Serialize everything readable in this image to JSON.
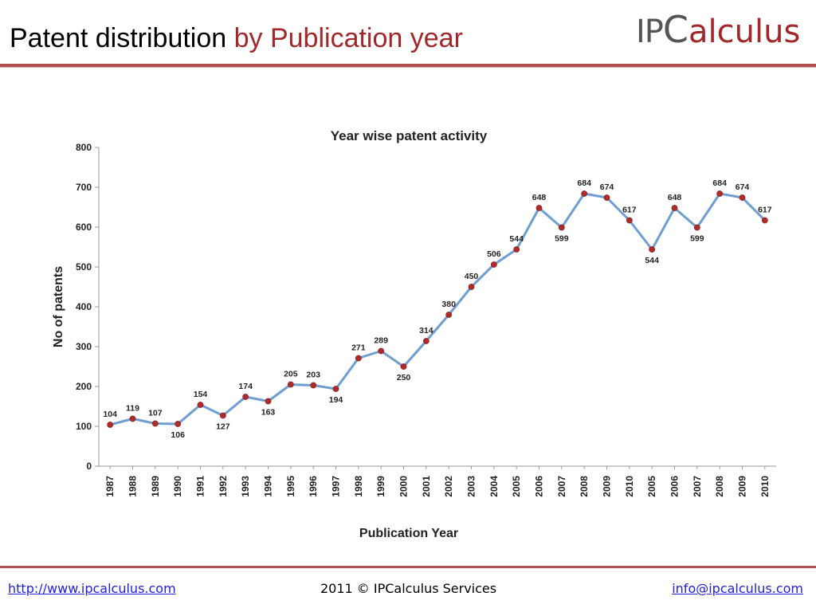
{
  "slide": {
    "title_part1": "Patent distribution",
    "title_part2": " by Publication year",
    "logo_ip": "IP",
    "logo_c": "C",
    "logo_rest": "alculus"
  },
  "footer": {
    "website": "http://www.ipcalculus.com",
    "copyright": "2011 © IPCalculus Services",
    "email": "info@ipcalculus.com"
  },
  "colors": {
    "accent": "#a0282a",
    "line": "#6f9ed0",
    "marker": "#b12a2a"
  },
  "chart_data": {
    "type": "line",
    "title": "Year wise patent activity",
    "xlabel": "Publication Year",
    "ylabel": "No of patents",
    "categories": [
      "1987",
      "1988",
      "1989",
      "1990",
      "1991",
      "1992",
      "1993",
      "1994",
      "1995",
      "1996",
      "1997",
      "1998",
      "1999",
      "2000",
      "2001",
      "2002",
      "2003",
      "2004",
      "2005",
      "2006",
      "2007",
      "2008",
      "2009",
      "2010",
      "2005",
      "2006",
      "2007",
      "2008",
      "2009",
      "2010"
    ],
    "values": [
      104,
      119,
      107,
      106,
      154,
      127,
      174,
      163,
      205,
      203,
      194,
      271,
      289,
      250,
      314,
      380,
      450,
      506,
      544,
      648,
      599,
      684,
      674,
      617,
      544,
      648,
      599,
      684,
      674,
      617
    ],
    "ylim": [
      0,
      800
    ],
    "yticks": [
      0,
      100,
      200,
      300,
      400,
      500,
      600,
      700,
      800
    ],
    "grid": false,
    "legend": "none"
  }
}
